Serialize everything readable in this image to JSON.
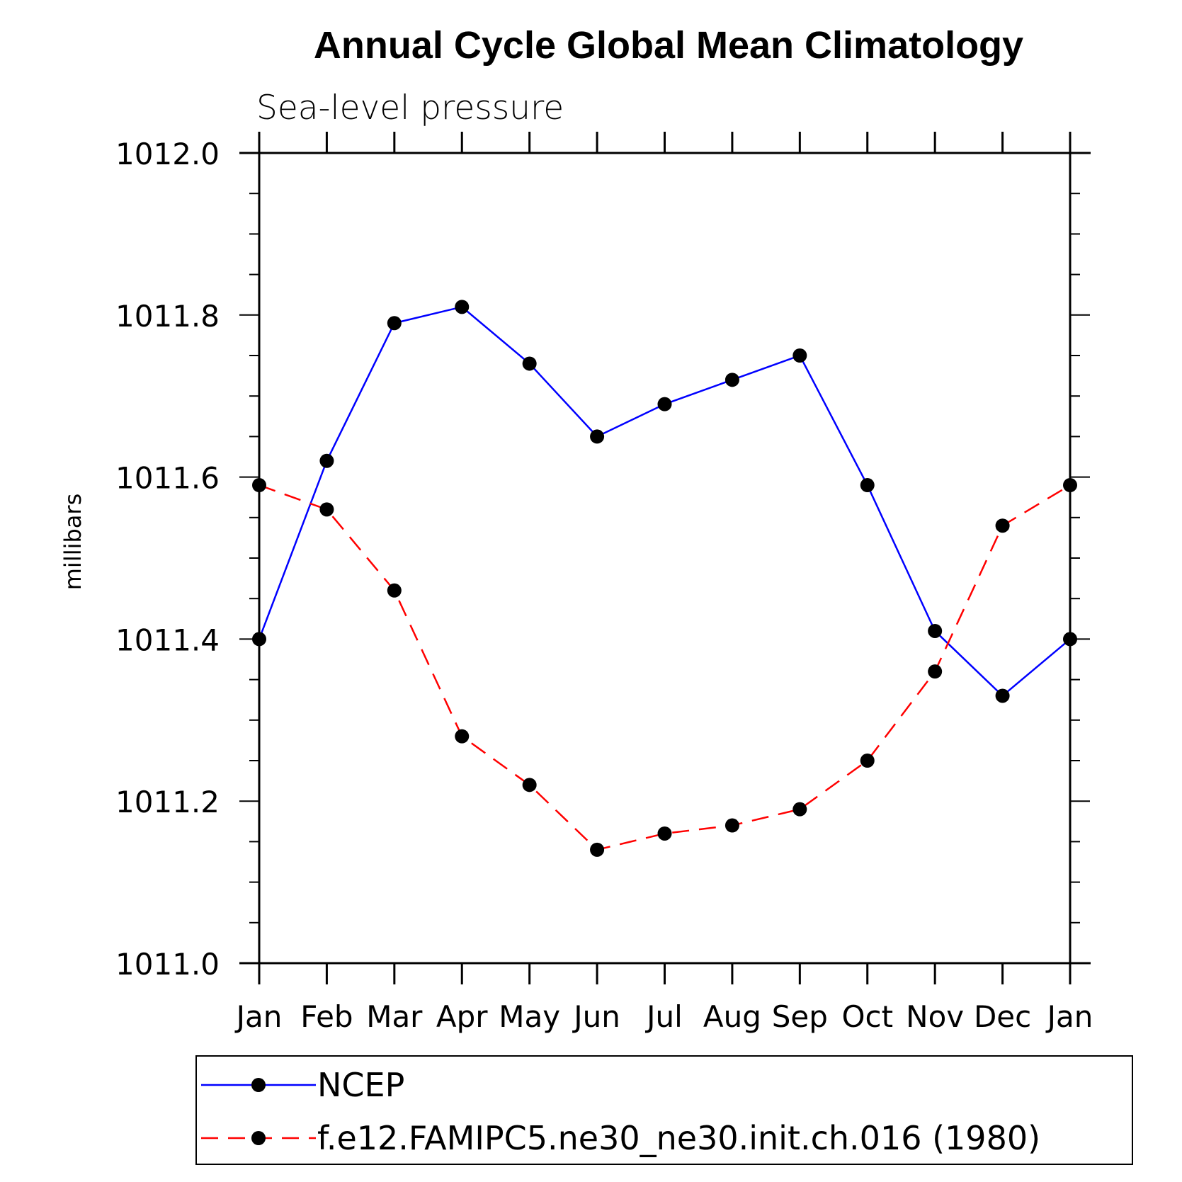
{
  "chart_data": {
    "type": "line",
    "title": "Annual Cycle Global Mean Climatology",
    "subtitle": "Sea-level pressure",
    "xlabel": "",
    "ylabel": "millibars",
    "categories": [
      "Jan",
      "Feb",
      "Mar",
      "Apr",
      "May",
      "Jun",
      "Jul",
      "Aug",
      "Sep",
      "Oct",
      "Nov",
      "Dec",
      "Jan"
    ],
    "ylim": [
      1011.0,
      1012.0
    ],
    "yticks": [
      "1011.0",
      "1011.2",
      "1011.4",
      "1011.6",
      "1011.8",
      "1012.0"
    ],
    "series": [
      {
        "name": "NCEP",
        "color": "#0000ff",
        "dash": "solid",
        "marker": "circle",
        "values": [
          1011.4,
          1011.62,
          1011.79,
          1011.81,
          1011.74,
          1011.65,
          1011.69,
          1011.72,
          1011.75,
          1011.59,
          1011.41,
          1011.33,
          1011.4
        ]
      },
      {
        "name": "f.e12.FAMIPC5.ne30_ne30.init.ch.016 (1980)",
        "color": "#ff0000",
        "dash": "dashed",
        "marker": "circle",
        "values": [
          1011.59,
          1011.56,
          1011.46,
          1011.28,
          1011.22,
          1011.14,
          1011.16,
          1011.17,
          1011.19,
          1011.25,
          1011.36,
          1011.54,
          1011.59
        ]
      }
    ],
    "legend": "bottom",
    "grid": false
  }
}
